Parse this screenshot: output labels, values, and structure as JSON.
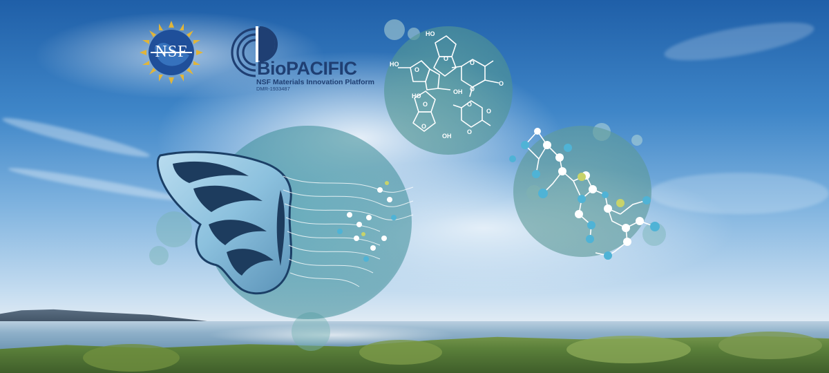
{
  "logos": {
    "nsf": {
      "text": "NSF",
      "icon": "nsf-globe-seal-icon"
    },
    "biopacific": {
      "word_prefix": "Bio",
      "word_suffix": "PACIFIC",
      "subtitle": "NSF Materials Innovation Platform",
      "award": "DMR-1933487",
      "icon": "biopacific-rings-icon"
    }
  },
  "chemistry": {
    "labels": [
      "HO",
      "HO",
      "O",
      "O",
      "OH",
      "O",
      "O",
      "O",
      "HO",
      "O",
      "O",
      "O",
      "O",
      "OH",
      "O"
    ]
  },
  "colors": {
    "sky_top": "#1f5fa8",
    "brand_navy": "#1f3f73",
    "bubble_teal": "#5fa09b",
    "atom_blue": "#4fb3d6",
    "atom_yellow": "#c7d36a"
  }
}
